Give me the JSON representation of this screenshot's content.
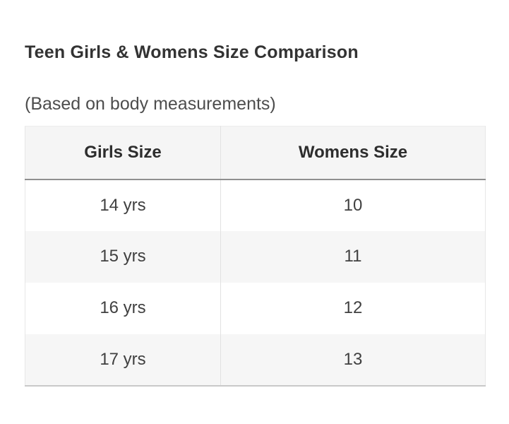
{
  "page": {
    "title": "Teen Girls & Womens Size Comparison",
    "subtitle": "(Based on body measurements)"
  },
  "table": {
    "headers": [
      "Girls Size",
      "Womens Size"
    ],
    "rows": [
      [
        "14 yrs",
        "10"
      ],
      [
        "15 yrs",
        "11"
      ],
      [
        "16 yrs",
        "12"
      ],
      [
        "17 yrs",
        "13"
      ]
    ]
  },
  "chart_data": {
    "type": "table",
    "title": "Teen Girls & Womens Size Comparison",
    "subtitle": "(Based on body measurements)",
    "columns": [
      "Girls Size",
      "Womens Size"
    ],
    "rows": [
      [
        "14 yrs",
        "10"
      ],
      [
        "15 yrs",
        "11"
      ],
      [
        "16 yrs",
        "12"
      ],
      [
        "17 yrs",
        "13"
      ]
    ],
    "layout_hints": {
      "header_row": true,
      "alternating_row_shading": true,
      "cell_alignment": "center"
    }
  },
  "colors": {
    "background": "#ffffff",
    "title_text": "#333333",
    "subtitle_text": "#4d4d4d",
    "header_bg": "#f5f5f5",
    "row_alt_bg": "#f6f6f6",
    "header_underline": "#8f8f8f",
    "table_bottom_border": "#c9c9c9",
    "column_divider": "#e2e2e2",
    "cell_text": "#404040"
  }
}
